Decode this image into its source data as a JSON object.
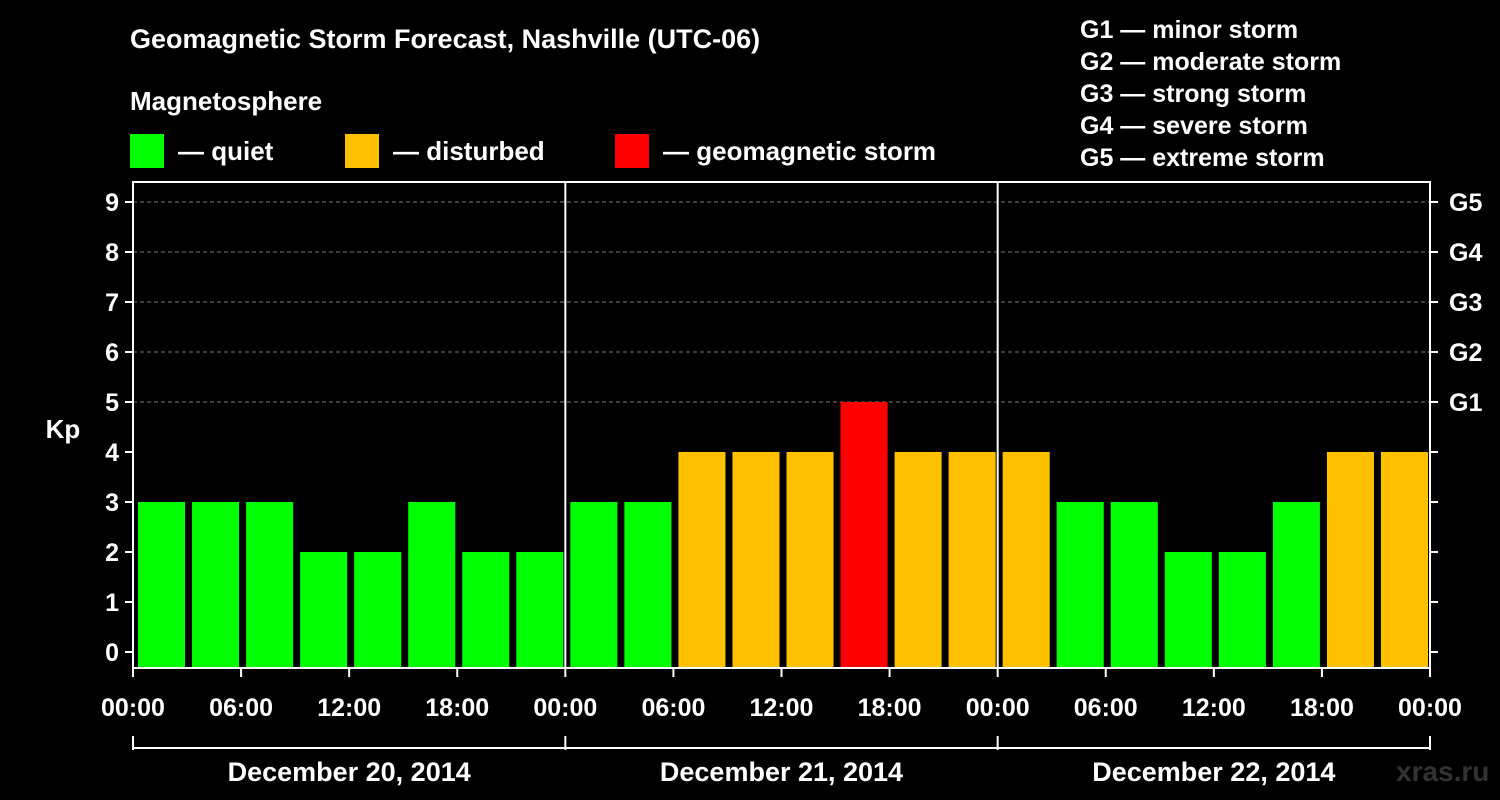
{
  "title": "Geomagnetic Storm Forecast, Nashville (UTC-06)",
  "legend": {
    "heading": "Magnetosphere",
    "items": [
      {
        "label": "— quiet",
        "color": "#00ff00"
      },
      {
        "label": "— disturbed",
        "color": "#ffc000"
      },
      {
        "label": "— geomagnetic storm",
        "color": "#ff0000"
      }
    ]
  },
  "storm_scale": [
    "G1 — minor storm",
    "G2 — moderate storm",
    "G3 — strong storm",
    "G4 — severe storm",
    "G5 — extreme storm"
  ],
  "watermark": "xras.ru",
  "chart_data": {
    "type": "bar",
    "title": "Geomagnetic Storm Forecast, Nashville (UTC-06)",
    "ylabel": "Kp",
    "ylim": [
      0,
      9
    ],
    "y_ticks": [
      "0",
      "1",
      "2",
      "3",
      "4",
      "5",
      "6",
      "7",
      "8",
      "9"
    ],
    "right_axis_ticks": [
      {
        "kp": 5,
        "label": "G1"
      },
      {
        "kp": 6,
        "label": "G2"
      },
      {
        "kp": 7,
        "label": "G3"
      },
      {
        "kp": 8,
        "label": "G4"
      },
      {
        "kp": 9,
        "label": "G5"
      }
    ],
    "x_tick_labels": [
      "00:00",
      "06:00",
      "12:00",
      "18:00",
      "00:00",
      "06:00",
      "12:00",
      "18:00",
      "00:00",
      "06:00",
      "12:00",
      "18:00",
      "00:00"
    ],
    "days": [
      "December 20, 2014",
      "December 21, 2014",
      "December 22, 2014"
    ],
    "interval_hours": 3,
    "values": [
      3,
      3,
      3,
      2,
      2,
      3,
      2,
      2,
      3,
      3,
      4,
      4,
      4,
      5,
      4,
      4,
      4,
      3,
      3,
      2,
      2,
      3,
      4,
      4
    ],
    "colors": {
      "quiet": "#00ff00",
      "disturbed": "#ffc000",
      "storm": "#ff0000"
    },
    "thresholds": {
      "disturbed": 4,
      "storm": 5
    },
    "grid": "dashed horizontal"
  }
}
